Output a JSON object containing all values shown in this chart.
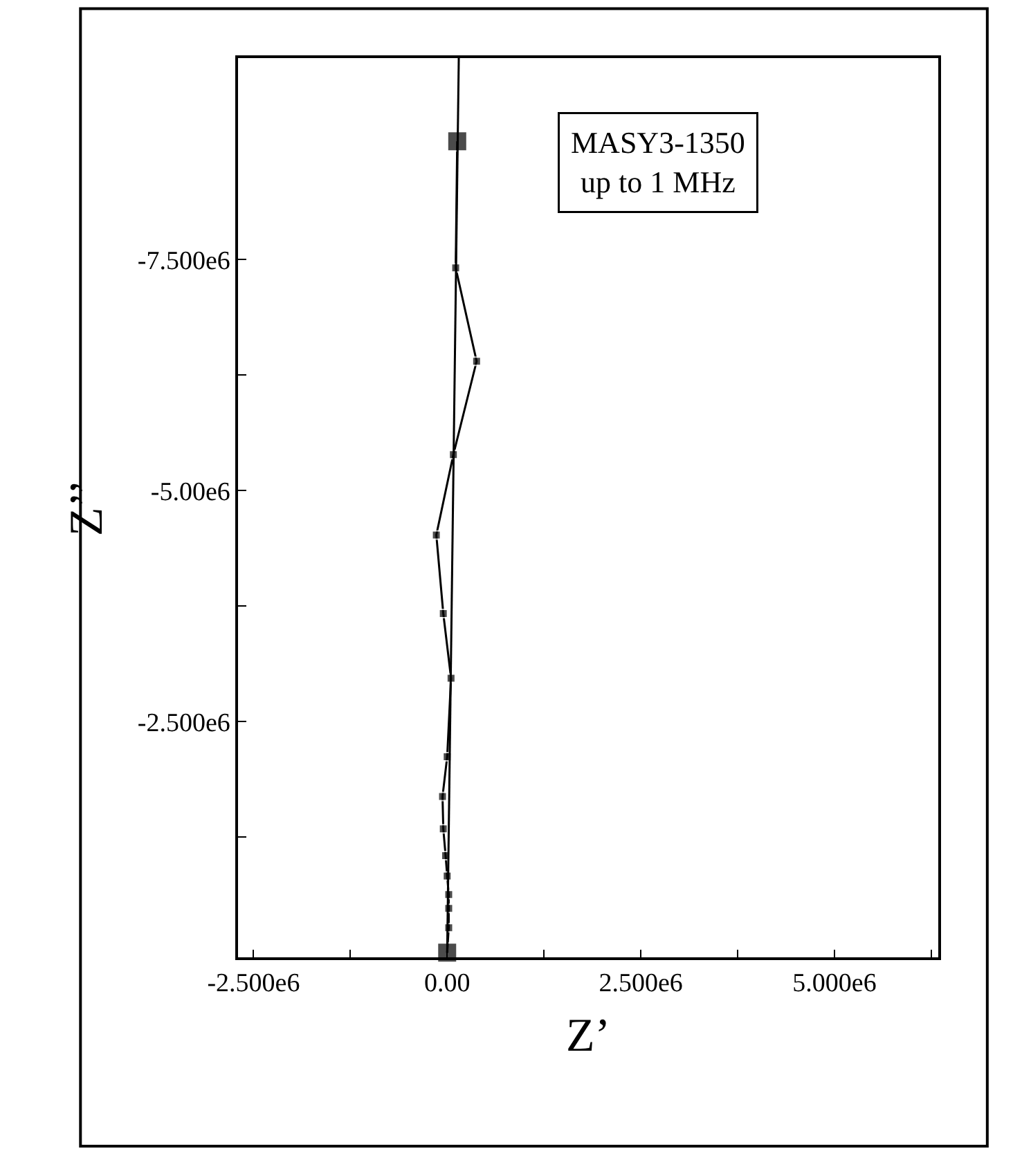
{
  "chart_data": {
    "type": "line",
    "xlabel": "Z’",
    "ylabel": "Z’’",
    "annotations": [
      "MASY3-1350\nup to 1 MHz"
    ],
    "series": [
      {
        "color": "#000000",
        "marker": "square",
        "x": [
          130000,
          110000,
          380000,
          80000,
          -140000,
          -50000,
          50000,
          0,
          -60000,
          -50000,
          -20000,
          0,
          20000,
          20000,
          20000,
          0
        ],
        "values": [
          -8780000,
          -7410000,
          -6400000,
          -5390000,
          -4520000,
          -3670000,
          -2970000,
          -2120000,
          -1690000,
          -1340000,
          -1050000,
          -830000,
          -630000,
          -480000,
          -270000,
          0
        ]
      },
      {
        "color": "#000000",
        "marker": "none",
        "x": [
          150000,
          0
        ],
        "values": [
          -9680000,
          0
        ]
      }
    ],
    "xlim": [
      -2700000,
      6340000
    ],
    "xticks": [
      {
        "value": -2500000,
        "label": "-2.500e6"
      },
      {
        "value": -1250000,
        "label": null
      },
      {
        "value": 0,
        "label": "0.00"
      },
      {
        "value": 1250000,
        "label": null
      },
      {
        "value": 2500000,
        "label": "2.500e6"
      },
      {
        "value": 3750000,
        "label": null
      },
      {
        "value": 5000000,
        "label": "5.000e6"
      },
      {
        "value": 6250000,
        "label": null
      }
    ],
    "ylim": [
      50000,
      -9680000
    ],
    "yticks": [
      {
        "value": -7500000,
        "label": "-7.500e6"
      },
      {
        "value": -6250000,
        "label": null
      },
      {
        "value": -5000000,
        "label": "-5.00e6"
      },
      {
        "value": -3750000,
        "label": null
      },
      {
        "value": -2500000,
        "label": "-2.500e6"
      },
      {
        "value": -1250000,
        "label": null
      }
    ],
    "line_style": "solid"
  }
}
